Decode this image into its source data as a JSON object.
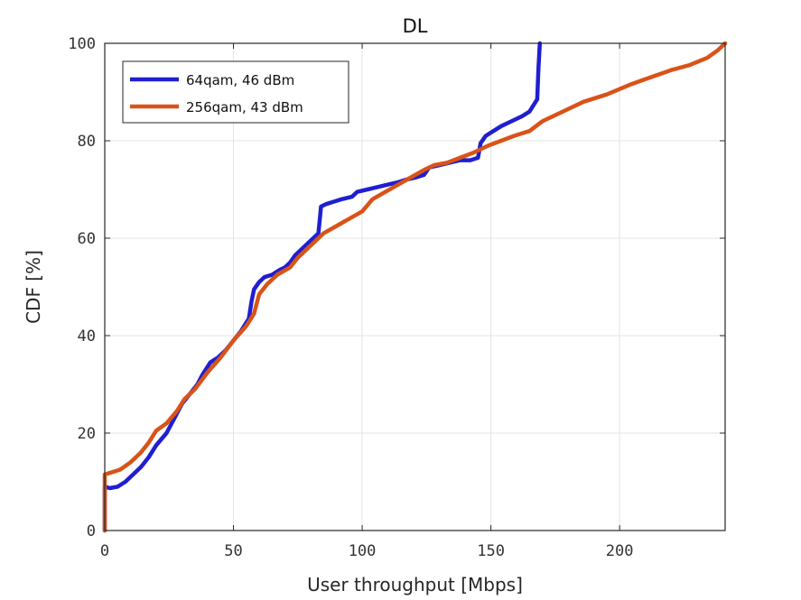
{
  "chart_data": {
    "type": "line",
    "title": "DL",
    "xlabel": "User throughput [Mbps]",
    "ylabel": "CDF [%]",
    "xlim": [
      0,
      241
    ],
    "ylim": [
      0,
      100
    ],
    "xticks": [
      "0",
      "50",
      "100",
      "150",
      "200"
    ],
    "xtick_values": [
      0,
      50,
      100,
      150,
      200
    ],
    "yticks": [
      "0",
      "20",
      "40",
      "60",
      "80",
      "100"
    ],
    "ytick_values": [
      0,
      20,
      40,
      60,
      80,
      100
    ],
    "grid": true,
    "legend_position": "top-left",
    "series": [
      {
        "name": "64qam, 46 dBm",
        "color": "#1f1fd0",
        "points": [
          [
            0,
            0
          ],
          [
            0,
            9
          ],
          [
            2,
            8.7
          ],
          [
            5,
            9
          ],
          [
            8,
            10
          ],
          [
            11,
            11.5
          ],
          [
            14,
            13
          ],
          [
            17,
            15
          ],
          [
            20,
            17.5
          ],
          [
            24,
            20
          ],
          [
            27,
            23
          ],
          [
            30,
            26
          ],
          [
            33,
            28
          ],
          [
            36,
            30
          ],
          [
            38,
            32
          ],
          [
            41,
            34.5
          ],
          [
            44,
            35.5
          ],
          [
            47,
            37
          ],
          [
            50,
            39
          ],
          [
            53,
            41
          ],
          [
            56,
            43.5
          ],
          [
            57,
            47
          ],
          [
            58,
            49.5
          ],
          [
            60,
            51
          ],
          [
            62,
            52
          ],
          [
            65,
            52.5
          ],
          [
            68,
            53.5
          ],
          [
            70,
            54
          ],
          [
            72,
            55
          ],
          [
            74,
            56.5
          ],
          [
            77,
            58
          ],
          [
            80,
            59.5
          ],
          [
            83,
            61
          ],
          [
            84,
            66.5
          ],
          [
            86,
            67
          ],
          [
            89,
            67.5
          ],
          [
            92,
            68
          ],
          [
            96,
            68.5
          ],
          [
            98,
            69.5
          ],
          [
            102,
            70
          ],
          [
            106,
            70.5
          ],
          [
            110,
            71
          ],
          [
            114,
            71.5
          ],
          [
            117,
            72
          ],
          [
            121,
            72.5
          ],
          [
            124,
            73
          ],
          [
            126,
            74.5
          ],
          [
            130,
            75
          ],
          [
            134,
            75.5
          ],
          [
            138,
            76
          ],
          [
            142,
            76
          ],
          [
            145,
            76.5
          ],
          [
            146,
            79.5
          ],
          [
            148,
            81
          ],
          [
            151,
            82
          ],
          [
            154,
            83
          ],
          [
            158,
            84
          ],
          [
            162,
            85
          ],
          [
            165,
            86
          ],
          [
            168,
            88.5
          ],
          [
            168.5,
            95
          ],
          [
            169,
            100
          ]
        ]
      },
      {
        "name": "256qam, 43 dBm",
        "color": "#d95319",
        "points": [
          [
            0,
            0
          ],
          [
            0,
            11.5
          ],
          [
            3,
            12
          ],
          [
            6,
            12.5
          ],
          [
            10,
            14
          ],
          [
            14,
            16
          ],
          [
            17,
            18
          ],
          [
            20,
            20.5
          ],
          [
            24,
            22
          ],
          [
            28,
            24.5
          ],
          [
            31,
            27
          ],
          [
            35,
            29
          ],
          [
            40,
            32.5
          ],
          [
            45,
            35.5
          ],
          [
            50,
            39
          ],
          [
            55,
            42
          ],
          [
            58,
            44.5
          ],
          [
            60,
            48.5
          ],
          [
            63,
            50.5
          ],
          [
            67,
            52.5
          ],
          [
            72,
            54
          ],
          [
            75,
            56
          ],
          [
            80,
            58.5
          ],
          [
            85,
            61
          ],
          [
            90,
            62.5
          ],
          [
            95,
            64
          ],
          [
            100,
            65.5
          ],
          [
            104,
            68
          ],
          [
            109,
            69.5
          ],
          [
            114,
            71
          ],
          [
            119,
            72.5
          ],
          [
            124,
            74
          ],
          [
            128,
            75
          ],
          [
            133,
            75.5
          ],
          [
            138,
            76.5
          ],
          [
            143,
            77.5
          ],
          [
            149,
            79
          ],
          [
            154,
            80
          ],
          [
            159,
            81
          ],
          [
            165,
            82
          ],
          [
            170,
            84
          ],
          [
            178,
            86
          ],
          [
            186,
            88
          ],
          [
            195,
            89.5
          ],
          [
            204,
            91.5
          ],
          [
            212,
            93
          ],
          [
            220,
            94.5
          ],
          [
            227,
            95.5
          ],
          [
            234,
            97
          ],
          [
            238,
            98.5
          ],
          [
            241,
            100
          ]
        ]
      }
    ]
  }
}
